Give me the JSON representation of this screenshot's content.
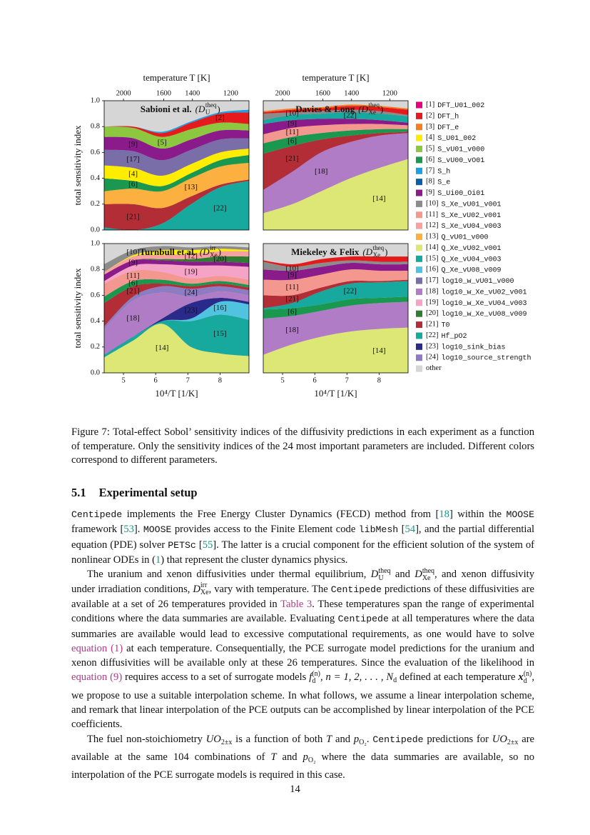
{
  "chart_data": [
    {
      "type": "area",
      "stacked": true,
      "title": "Sabioni et al.",
      "symbol": {
        "base": "(D",
        "sub": "U",
        "sup": "theq",
        "end": ")"
      },
      "x": [
        4.4,
        5.3,
        6.2,
        7.1,
        8.0,
        8.9
      ],
      "xlim": [
        4.4,
        8.9
      ],
      "ylim": [
        0,
        1
      ],
      "yticks": [
        {
          "value": 0,
          "label": "0.0"
        },
        0.2,
        0.4,
        0.6,
        0.8,
        {
          "value": 1,
          "label": "1.0"
        }
      ],
      "ylabel": "total sensitivity index",
      "x2label": "temperature T [K]",
      "x2ticks": [
        2000,
        1600,
        1400,
        1200
      ],
      "background": "#d6d6d6",
      "series": [
        {
          "name": "[22]",
          "color": "#17a89e",
          "values": [
            0.02,
            0.0,
            0.05,
            0.2,
            0.33,
            0.38
          ]
        },
        {
          "name": "[21]",
          "color": "#b22d35",
          "values": [
            0.18,
            0.2,
            0.12,
            0.06,
            0.02,
            0.01
          ]
        },
        {
          "name": "[13]",
          "color": "#fbb040",
          "values": [
            0.1,
            0.12,
            0.13,
            0.14,
            0.14,
            0.13
          ]
        },
        {
          "name": "[6]",
          "color": "#1a9850",
          "values": [
            0.1,
            0.06,
            0.04,
            0.04,
            0.05,
            0.06
          ]
        },
        {
          "name": "[4]",
          "color": "#ffed00",
          "values": [
            0.1,
            0.1,
            0.08,
            0.07,
            0.06,
            0.05
          ]
        },
        {
          "name": "[17]",
          "color": "#7a6ea8",
          "values": [
            0.12,
            0.13,
            0.12,
            0.11,
            0.1,
            0.08
          ]
        },
        {
          "name": "[9]",
          "color": "#8b1a8b",
          "values": [
            0.1,
            0.1,
            0.09,
            0.08,
            0.07,
            0.06
          ]
        },
        {
          "name": "[5]",
          "color": "#8dc63f",
          "values": [
            0.08,
            0.08,
            0.09,
            0.08,
            0.06,
            0.05
          ]
        },
        {
          "name": "[2]",
          "color": "#e41a1c",
          "values": [
            0.0,
            0.01,
            0.03,
            0.05,
            0.07,
            0.09
          ]
        },
        {
          "color": "#1ba1e2",
          "values": [
            0.0,
            0.0,
            0.01,
            0.01,
            0.01,
            0.02
          ]
        }
      ]
    },
    {
      "type": "area",
      "stacked": true,
      "title": "Davies & Long",
      "symbol": {
        "base": "(D",
        "sub": "Xe",
        "sup": "theq",
        "end": ")"
      },
      "x": [
        4.4,
        5.3,
        6.2,
        7.1,
        8.0,
        8.9
      ],
      "xlim": [
        4.4,
        8.9
      ],
      "ylim": [
        0,
        1
      ],
      "x2label": "temperature T [K]",
      "x2ticks": [
        2000,
        1600,
        1400,
        1200
      ],
      "background": "#d6d6d6",
      "series": [
        {
          "name": "[14]",
          "color": "#dce775",
          "values": [
            0.13,
            0.2,
            0.3,
            0.4,
            0.48,
            0.55
          ]
        },
        {
          "name": "[18]",
          "color": "#b07cc6",
          "values": [
            0.18,
            0.25,
            0.3,
            0.28,
            0.25,
            0.2
          ]
        },
        {
          "name": "[21]",
          "color": "#b22d35",
          "values": [
            0.28,
            0.2,
            0.1,
            0.05,
            0.02,
            0.01
          ]
        },
        {
          "name": "[6]",
          "color": "#1a9850",
          "values": [
            0.08,
            0.07,
            0.05,
            0.04,
            0.03,
            0.02
          ]
        },
        {
          "name": "[11]",
          "color": "#f4978e",
          "values": [
            0.07,
            0.07,
            0.06,
            0.05,
            0.04,
            0.03
          ]
        },
        {
          "name": "[9]",
          "color": "#8b1a8b",
          "values": [
            0.08,
            0.06,
            0.05,
            0.04,
            0.03,
            0.02
          ]
        },
        {
          "name": "[22]",
          "color": "#17a89e",
          "values": [
            0.03,
            0.04,
            0.04,
            0.05,
            0.05,
            0.05
          ]
        },
        {
          "name": "[10]",
          "color": "#8c8c8c",
          "values": [
            0.05,
            0.02,
            0.02,
            0.02,
            0.02,
            0.01
          ]
        },
        {
          "color": "#e41a1c",
          "values": [
            0.01,
            0.02,
            0.02,
            0.03,
            0.03,
            0.04
          ]
        },
        {
          "color": "#f57f20",
          "values": [
            0.01,
            0.01,
            0.01,
            0.01,
            0.01,
            0.01
          ]
        }
      ]
    },
    {
      "type": "area",
      "stacked": true,
      "title": "Turnbull et al.",
      "symbol": {
        "base": "(D",
        "sub": "Xe",
        "sup": "irr",
        "end": ")"
      },
      "x": [
        4.4,
        5.3,
        6.2,
        7.1,
        8.0,
        8.9
      ],
      "xlim": [
        4.4,
        8.9
      ],
      "ylim": [
        0,
        1
      ],
      "yticks": [
        {
          "value": 0,
          "label": "0.0"
        },
        0.2,
        0.4,
        0.6,
        0.8,
        {
          "value": 1,
          "label": "1.0"
        }
      ],
      "ylabel": "total sensitivity index",
      "xlabel": "10⁴/T [1/K]",
      "xticks": [
        5,
        6,
        7,
        8
      ],
      "background": "#d6d6d6",
      "series": [
        {
          "name": "[14]",
          "color": "#dce775",
          "values": [
            0.12,
            0.25,
            0.38,
            0.2,
            0.15,
            0.13
          ]
        },
        {
          "name": "[15]",
          "color": "#17a89e",
          "values": [
            0.02,
            0.03,
            0.02,
            0.2,
            0.3,
            0.28
          ]
        },
        {
          "name": "[16]",
          "color": "#4fc3e0",
          "values": [
            0.0,
            0.0,
            0.0,
            0.02,
            0.1,
            0.12
          ]
        },
        {
          "name": "[23]",
          "color": "#2a2a8a",
          "values": [
            0.0,
            0.0,
            0.02,
            0.12,
            0.03,
            0.02
          ]
        },
        {
          "name": "[18]",
          "color": "#b07cc6",
          "values": [
            0.2,
            0.28,
            0.2,
            0.05,
            0.05,
            0.05
          ]
        },
        {
          "name": "[24]",
          "color": "#8e7cc3",
          "values": [
            0.02,
            0.03,
            0.05,
            0.06,
            0.04,
            0.04
          ]
        },
        {
          "name": "[21]",
          "color": "#b22d35",
          "values": [
            0.18,
            0.08,
            0.02,
            0.02,
            0.02,
            0.02
          ]
        },
        {
          "name": "[6]",
          "color": "#1a9850",
          "values": [
            0.05,
            0.04,
            0.03,
            0.02,
            0.02,
            0.02
          ]
        },
        {
          "name": "[11]",
          "color": "#f4978e",
          "values": [
            0.1,
            0.08,
            0.06,
            0.04,
            0.04,
            0.04
          ]
        },
        {
          "name": "[19]",
          "color": "#f5a3c7",
          "values": [
            0.02,
            0.04,
            0.06,
            0.1,
            0.08,
            0.1
          ]
        },
        {
          "name": "[9]",
          "color": "#8b1a8b",
          "values": [
            0.05,
            0.04,
            0.03,
            0.03,
            0.03,
            0.03
          ]
        },
        {
          "name": "[20]",
          "color": "#2e7d32",
          "values": [
            0.0,
            0.0,
            0.01,
            0.02,
            0.04,
            0.05
          ]
        },
        {
          "name": "[12]",
          "color": "#f7a1a1",
          "values": [
            0.02,
            0.03,
            0.03,
            0.04,
            0.04,
            0.04
          ]
        },
        {
          "color": "#ffed00",
          "values": [
            0.0,
            0.01,
            0.04,
            0.03,
            0.02,
            0.01
          ]
        },
        {
          "name": "[10]",
          "color": "#8c8c8c",
          "values": [
            0.06,
            0.04,
            0.03,
            0.02,
            0.02,
            0.02
          ]
        }
      ]
    },
    {
      "type": "area",
      "stacked": true,
      "title": "Miekeley & Felix",
      "symbol": {
        "base": "(D",
        "sub": "Xe",
        "sup": "theq",
        "end": ")"
      },
      "x": [
        4.4,
        5.3,
        6.2,
        7.1,
        8.0,
        8.9
      ],
      "xlim": [
        4.4,
        8.9
      ],
      "ylim": [
        0,
        1
      ],
      "xlabel": "10⁴/T [1/K]",
      "xticks": [
        5,
        6,
        7,
        8
      ],
      "background": "#d6d6d6",
      "series": [
        {
          "name": "[14]",
          "color": "#dce775",
          "values": [
            0.14,
            0.22,
            0.28,
            0.32,
            0.34,
            0.35
          ]
        },
        {
          "name": "[18]",
          "color": "#b07cc6",
          "values": [
            0.28,
            0.22,
            0.2,
            0.2,
            0.2,
            0.2
          ]
        },
        {
          "name": "[6]",
          "color": "#1a9850",
          "values": [
            0.07,
            0.06,
            0.05,
            0.05,
            0.04,
            0.04
          ]
        },
        {
          "name": "[22]",
          "color": "#17a89e",
          "values": [
            0.01,
            0.04,
            0.1,
            0.12,
            0.12,
            0.12
          ]
        },
        {
          "name": "[21]",
          "color": "#b22d35",
          "values": [
            0.1,
            0.06,
            0.03,
            0.02,
            0.01,
            0.01
          ]
        },
        {
          "name": "[11]",
          "color": "#f4978e",
          "values": [
            0.12,
            0.12,
            0.1,
            0.09,
            0.08,
            0.07
          ]
        },
        {
          "name": "[9]",
          "color": "#8b1a8b",
          "values": [
            0.08,
            0.07,
            0.06,
            0.05,
            0.05,
            0.05
          ]
        },
        {
          "name": "[10]",
          "color": "#8c8c8c",
          "values": [
            0.06,
            0.03,
            0.03,
            0.02,
            0.02,
            0.02
          ]
        },
        {
          "color": "#e41a1c",
          "values": [
            0.01,
            0.02,
            0.03,
            0.03,
            0.04,
            0.04
          ]
        }
      ]
    }
  ],
  "figure_legend": [
    {
      "key": "[1]",
      "name": "DFT_U01_002",
      "color": "#e6007e"
    },
    {
      "key": "[2]",
      "name": "DFT_h",
      "color": "#e41a1c"
    },
    {
      "key": "[3]",
      "name": "DFT_e",
      "color": "#f57f20"
    },
    {
      "key": "[4]",
      "name": "S_U01_002",
      "color": "#ffed00"
    },
    {
      "key": "[5]",
      "name": "S_vU01_v000",
      "color": "#8dc63f"
    },
    {
      "key": "[6]",
      "name": "S_vU00_vO01",
      "color": "#1a9850"
    },
    {
      "key": "[7]",
      "name": "S_h",
      "color": "#1ba1e2"
    },
    {
      "key": "[8]",
      "name": "S_e",
      "color": "#0b5fa5"
    },
    {
      "key": "[9]",
      "name": "S_Ui00_Oi01",
      "color": "#8b1a8b"
    },
    {
      "key": "[10]",
      "name": "S_Xe_vU01_v001",
      "color": "#8c8c8c"
    },
    {
      "key": "[11]",
      "name": "S_Xe_vU02_v001",
      "color": "#f4978e"
    },
    {
      "key": "[12]",
      "name": "S_Xe_vU04_v003",
      "color": "#f7a1a1"
    },
    {
      "key": "[13]",
      "name": "Q_vU01_v000",
      "color": "#fbb040"
    },
    {
      "key": "[14]",
      "name": "Q_Xe_vU02_v001",
      "color": "#dce775"
    },
    {
      "key": "[15]",
      "name": "Q_Xe_vU04_v003",
      "color": "#17a89e"
    },
    {
      "key": "[16]",
      "name": "Q_Xe_vU08_v009",
      "color": "#4fc3e0"
    },
    {
      "key": "[17]",
      "name": "log10_w_vU01_v000",
      "color": "#7a6ea8"
    },
    {
      "key": "[18]",
      "name": "log10_w_Xe_vU02_v001",
      "color": "#b07cc6"
    },
    {
      "key": "[19]",
      "name": "log10_w_Xe_vU04_v003",
      "color": "#f5a3c7"
    },
    {
      "key": "[20]",
      "name": "log10_w_Xe_vU08_v009",
      "color": "#2e7d32"
    },
    {
      "key": "[21]",
      "name": "T0",
      "color": "#b22d35"
    },
    {
      "key": "[22]",
      "name": "Hf_pO2",
      "color": "#17a89e"
    },
    {
      "key": "[23]",
      "name": "log10_sink_bias",
      "color": "#2a2a8a"
    },
    {
      "key": "[24]",
      "name": "log10_source_strength",
      "color": "#8e7cc3"
    },
    {
      "name": "other",
      "color": "#d6d6d6"
    }
  ],
  "caption": {
    "label": "Figure 7:",
    "text": "Total-effect Sobol’ sensitivity indices of the diffusivity predictions in each experiment as a function of temperature. Only the sensitivity indices of the 24 most important parameters are included. Different colors correspond to different parameters."
  },
  "section": {
    "number": "5.1",
    "title": "Experimental setup"
  },
  "paragraphs": [
    [
      {
        "code": "Centipede"
      },
      " implements the Free Energy Cluster Dynamics (FECD) method from [",
      {
        "cite": "18"
      },
      "] within the ",
      {
        "code": "MOOSE"
      },
      " framework [",
      {
        "cite": "53"
      },
      "]. ",
      {
        "code": "MOOSE"
      },
      " provides access to the Finite Element code ",
      {
        "code": "libMesh"
      },
      " [",
      {
        "cite": "54"
      },
      "], and the partial differential equation (PDE) solver ",
      {
        "code": "PETSc"
      },
      " [",
      {
        "cite": "55"
      },
      "]. The latter is a crucial component for the efficient solution of the system of nonlinear ODEs in (",
      {
        "cite": "1"
      },
      ") that represent the cluster dynamics physics."
    ],
    [
      "The uranium and xenon diffusivities under thermal equilibrium, ",
      {
        "math": "D",
        "sub": "U",
        "sup": "theq"
      },
      " and ",
      {
        "math": "D",
        "sub": "Xe",
        "sup": "theq"
      },
      ", and xenon diffusivity under irradiation conditions, ",
      {
        "math": "D",
        "sub": "Xe",
        "sup": "irr"
      },
      ", vary with temperature. The ",
      {
        "code": "Centipede"
      },
      " predictions of these diffusivities are available at a set of 26 temperatures provided in ",
      {
        "ref": "Table 3"
      },
      ". These temperatures span the range of experimental conditions where the data summaries are available. Evaluating ",
      {
        "code": "Centipede"
      },
      " at all temperatures where the data summaries are available would lead to excessive computational requirements, as one would have to solve ",
      {
        "ref": "equation (1)"
      },
      " at each temperature. Consequentially, the PCE surrogate model predictions for the uranium and xenon diffusivities will be available only at these 26 temperatures. Since the evaluation of the likelihood in ",
      {
        "ref": "equation (9)"
      },
      " requires access to a set of surrogate models ",
      {
        "math": "f",
        "sub": "d",
        "sup": "(n)"
      },
      ", ",
      {
        "math": "n = 1, 2, . . . , N",
        "sub": "d"
      },
      " defined at each temperature ",
      {
        "math": "x",
        "sub": "d",
        "sup": "(n)",
        "bold": true
      },
      ", we propose to use a suitable interpolation scheme. In what follows, we assume a linear interpolation scheme, and remark that linear interpolation of the PCE outputs can be accomplished by linear interpolation of the PCE coefficients."
    ],
    [
      "The fuel non-stoichiometry ",
      {
        "math": "UO",
        "sub": "2±x"
      },
      " is a function of both ",
      {
        "math": "T"
      },
      " and ",
      {
        "math": "p",
        "sub": "O₂"
      },
      ". ",
      {
        "code": "Centipede"
      },
      " predictions for ",
      {
        "math": "UO",
        "sub": "2±x"
      },
      " are available at the same 104 combinations of ",
      {
        "math": "T"
      },
      " and ",
      {
        "math": "p",
        "sub": "O₂"
      },
      " where the data summaries are available, so no interpolation of the PCE surrogate models is required in this case."
    ]
  ],
  "page_number": "14"
}
